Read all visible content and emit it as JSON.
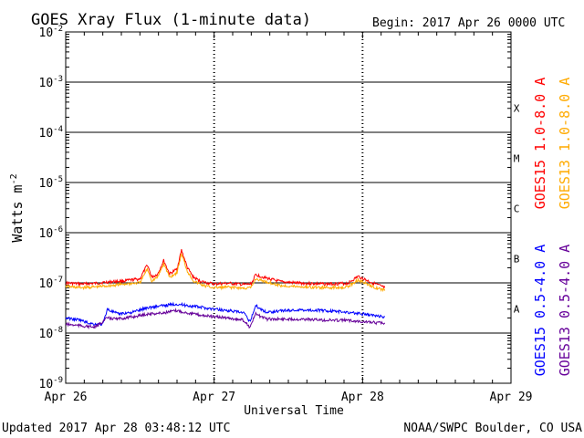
{
  "chart_data": {
    "type": "line",
    "title": "GOES Xray Flux (1-minute data)",
    "begin_label": "Begin:  2017 Apr 26 0000 UTC",
    "xlabel": "Universal Time",
    "ylabel_base": "Watts m",
    "ylabel_exp": "-2",
    "y_scale": "log",
    "ylim_exp": [
      -9,
      -2
    ],
    "y_ticks": [
      {
        "base": "10",
        "exp": "-2"
      },
      {
        "base": "10",
        "exp": "-3"
      },
      {
        "base": "10",
        "exp": "-4"
      },
      {
        "base": "10",
        "exp": "-5"
      },
      {
        "base": "10",
        "exp": "-6"
      },
      {
        "base": "10",
        "exp": "-7"
      },
      {
        "base": "10",
        "exp": "-8"
      },
      {
        "base": "10",
        "exp": "-9"
      }
    ],
    "x_ticks": [
      "Apr 26",
      "Apr 27",
      "Apr 28",
      "Apr 29"
    ],
    "x_range_days": [
      0,
      3
    ],
    "flare_classes": [
      {
        "label": "X",
        "exp": -4
      },
      {
        "label": "M",
        "exp": -5
      },
      {
        "label": "C",
        "exp": -6
      },
      {
        "label": "B",
        "exp": -7
      },
      {
        "label": "A",
        "exp": -8
      }
    ],
    "series": [
      {
        "name": "GOES15 1.0-8.0 A",
        "color": "#ff0000",
        "points": [
          [
            0.0,
            1e-07
          ],
          [
            0.1,
            9.5e-08
          ],
          [
            0.2,
            9.8e-08
          ],
          [
            0.3,
            1.05e-07
          ],
          [
            0.4,
            1.1e-07
          ],
          [
            0.5,
            1.2e-07
          ],
          [
            0.55,
            2.3e-07
          ],
          [
            0.58,
            1.3e-07
          ],
          [
            0.62,
            1.5e-07
          ],
          [
            0.66,
            2.8e-07
          ],
          [
            0.7,
            1.5e-07
          ],
          [
            0.75,
            1.9e-07
          ],
          [
            0.78,
            4.5e-07
          ],
          [
            0.82,
            2e-07
          ],
          [
            0.86,
            1.3e-07
          ],
          [
            0.9,
            1.1e-07
          ],
          [
            0.95,
            1e-07
          ],
          [
            1.0,
            9.5e-08
          ],
          [
            1.1,
            9.8e-08
          ],
          [
            1.2,
            9.2e-08
          ],
          [
            1.25,
            9.5e-08
          ],
          [
            1.28,
            1.45e-07
          ],
          [
            1.35,
            1.25e-07
          ],
          [
            1.45,
            1.05e-07
          ],
          [
            1.6,
            9.8e-08
          ],
          [
            1.75,
            9.5e-08
          ],
          [
            1.9,
            9.8e-08
          ],
          [
            1.97,
            1.35e-07
          ],
          [
            2.05,
            1.05e-07
          ],
          [
            2.15,
            8e-08
          ]
        ]
      },
      {
        "name": "GOES13 1.0-8.0 A",
        "color": "#ffaa00",
        "points": [
          [
            0.0,
            8.5e-08
          ],
          [
            0.1,
            8e-08
          ],
          [
            0.2,
            8.3e-08
          ],
          [
            0.3,
            8.8e-08
          ],
          [
            0.4,
            9.5e-08
          ],
          [
            0.5,
            1e-07
          ],
          [
            0.55,
            1.9e-07
          ],
          [
            0.58,
            1.1e-07
          ],
          [
            0.62,
            1.3e-07
          ],
          [
            0.66,
            2.4e-07
          ],
          [
            0.7,
            1.3e-07
          ],
          [
            0.75,
            1.6e-07
          ],
          [
            0.78,
            3.8e-07
          ],
          [
            0.82,
            1.7e-07
          ],
          [
            0.86,
            1.1e-07
          ],
          [
            0.9,
            9.5e-08
          ],
          [
            0.95,
            8.5e-08
          ],
          [
            1.0,
            8e-08
          ],
          [
            1.1,
            8.2e-08
          ],
          [
            1.2,
            7.8e-08
          ],
          [
            1.25,
            8e-08
          ],
          [
            1.28,
            1.2e-07
          ],
          [
            1.35,
            1.05e-07
          ],
          [
            1.45,
            8.8e-08
          ],
          [
            1.6,
            8.3e-08
          ],
          [
            1.75,
            8e-08
          ],
          [
            1.9,
            8.3e-08
          ],
          [
            1.97,
            1.15e-07
          ],
          [
            2.05,
            8.8e-08
          ],
          [
            2.15,
            7e-08
          ]
        ]
      },
      {
        "name": "GOES15 0.5-4.0 A",
        "color": "#0000ff",
        "points": [
          [
            0.0,
            2e-08
          ],
          [
            0.1,
            1.8e-08
          ],
          [
            0.15,
            1.6e-08
          ],
          [
            0.2,
            1.5e-08
          ],
          [
            0.25,
            1.5e-08
          ],
          [
            0.28,
            3e-08
          ],
          [
            0.35,
            2.4e-08
          ],
          [
            0.45,
            2.6e-08
          ],
          [
            0.55,
            3.2e-08
          ],
          [
            0.65,
            3.5e-08
          ],
          [
            0.75,
            3.8e-08
          ],
          [
            0.8,
            3.6e-08
          ],
          [
            0.9,
            3.3e-08
          ],
          [
            1.0,
            3e-08
          ],
          [
            1.1,
            2.8e-08
          ],
          [
            1.2,
            2.5e-08
          ],
          [
            1.24,
            1.7e-08
          ],
          [
            1.28,
            3.5e-08
          ],
          [
            1.35,
            2.6e-08
          ],
          [
            1.45,
            2.8e-08
          ],
          [
            1.6,
            2.9e-08
          ],
          [
            1.75,
            2.8e-08
          ],
          [
            1.9,
            2.6e-08
          ],
          [
            2.0,
            2.4e-08
          ],
          [
            2.1,
            2.2e-08
          ],
          [
            2.15,
            2.1e-08
          ]
        ]
      },
      {
        "name": "GOES13 0.5-4.0 A",
        "color": "#660099",
        "points": [
          [
            0.0,
            1.5e-08
          ],
          [
            0.1,
            1.4e-08
          ],
          [
            0.2,
            1.3e-08
          ],
          [
            0.28,
            2e-08
          ],
          [
            0.35,
            1.9e-08
          ],
          [
            0.45,
            2.1e-08
          ],
          [
            0.55,
            2.4e-08
          ],
          [
            0.65,
            2.5e-08
          ],
          [
            0.75,
            2.8e-08
          ],
          [
            0.8,
            2.6e-08
          ],
          [
            0.9,
            2.3e-08
          ],
          [
            1.0,
            2.1e-08
          ],
          [
            1.1,
            2e-08
          ],
          [
            1.2,
            1.8e-08
          ],
          [
            1.24,
            1.3e-08
          ],
          [
            1.28,
            2.4e-08
          ],
          [
            1.35,
            1.9e-08
          ],
          [
            1.45,
            1.9e-08
          ],
          [
            1.6,
            1.9e-08
          ],
          [
            1.75,
            1.8e-08
          ],
          [
            1.9,
            1.8e-08
          ],
          [
            2.0,
            1.7e-08
          ],
          [
            2.1,
            1.6e-08
          ],
          [
            2.15,
            1.6e-08
          ]
        ]
      }
    ],
    "legend_placement": "right, vertical"
  },
  "footer": {
    "updated": "Updated 2017 Apr 28 03:48:12 UTC",
    "source": "NOAA/SWPC Boulder, CO USA"
  }
}
